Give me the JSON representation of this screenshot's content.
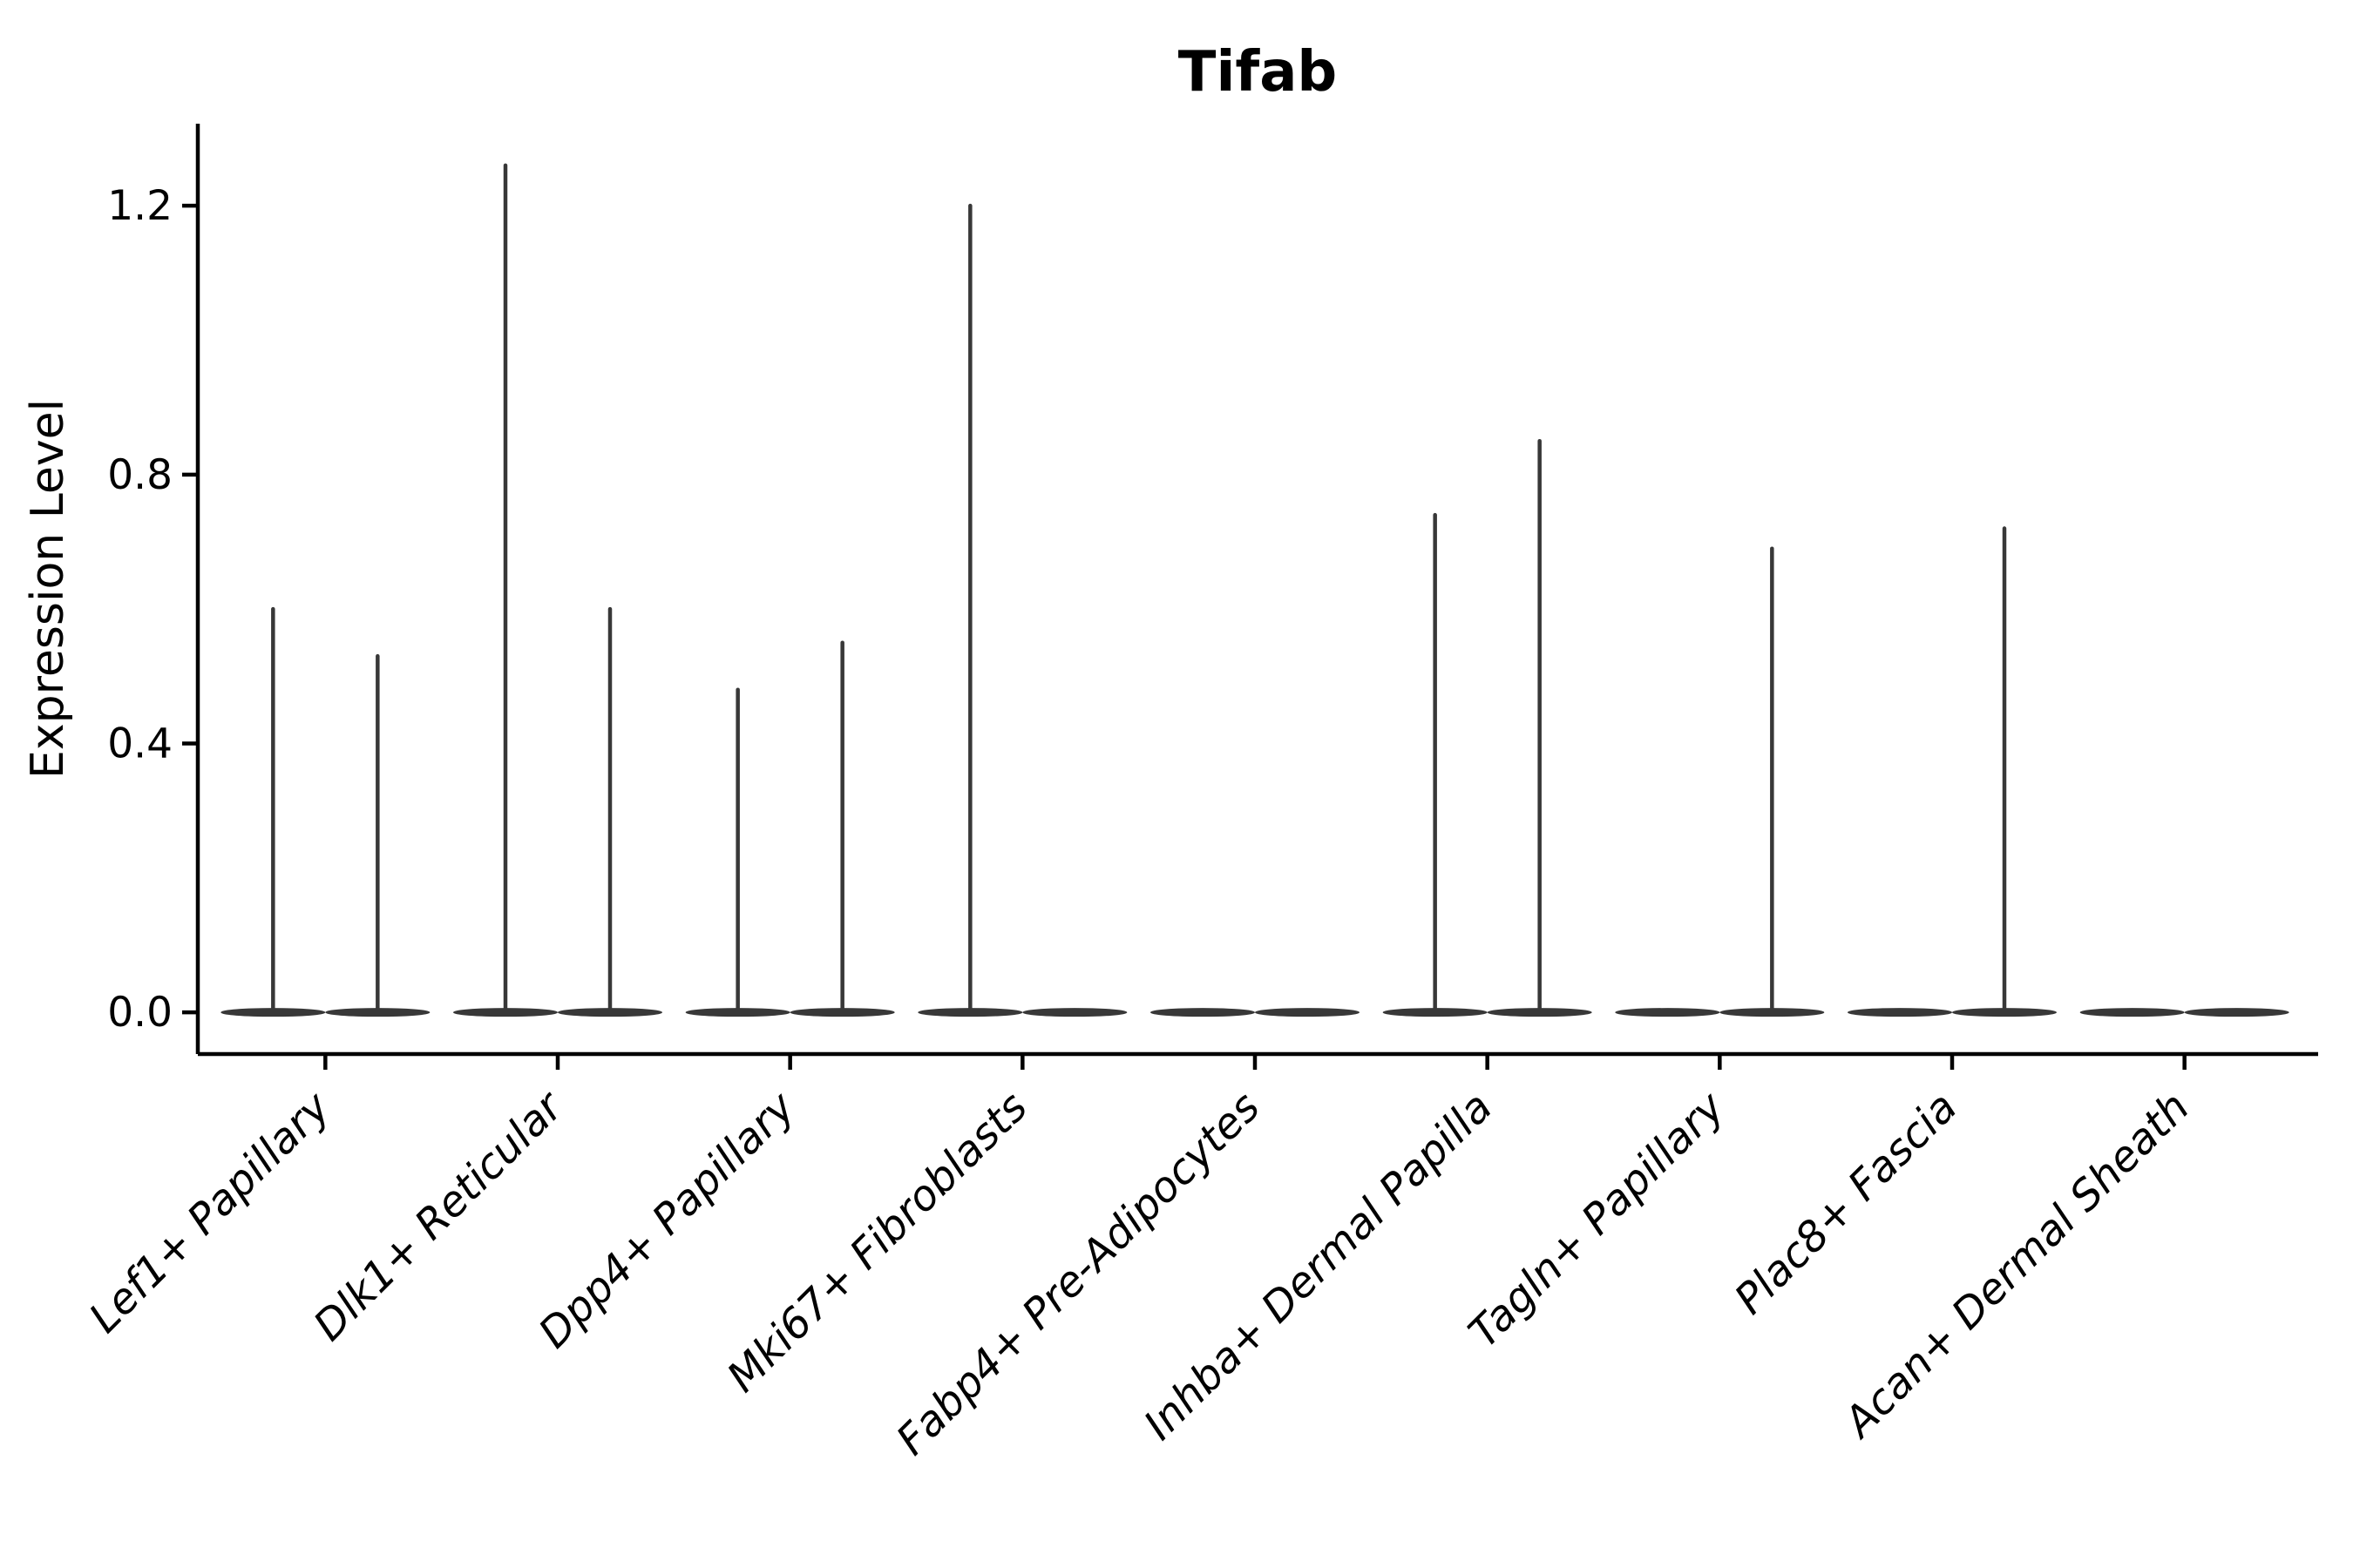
{
  "title": "Tifab",
  "ylabel": "Expression Level",
  "colors": {
    "violin": "#383838",
    "axis": "#000000",
    "background": "#ffffff",
    "text": "#000000"
  },
  "chart_data": {
    "type": "violin",
    "title": "Tifab",
    "xlabel": "",
    "ylabel": "Expression Level",
    "categories": [
      "Lef1+ Papillary",
      "Dlk1+ Reticular",
      "Dpp4+ Papillary",
      "Mki67+ Fibroblasts",
      "Fabp4+ Pre-Adipocytes",
      "Inhba+ Dermal Papilla",
      "Tagln+ Papillary",
      "Plac8+ Fascia",
      "Acan+ Dermal Sheath"
    ],
    "violins_per_category": 2,
    "description": "Each category shows two side-by-side violins whose density is concentrated at 0 (flat body) with a thin tail (spike) up to the max expression value.",
    "series": [
      {
        "name": "left-violin-max",
        "values": [
          0.6,
          1.26,
          0.48,
          1.2,
          0,
          0.74,
          0,
          0,
          0
        ]
      },
      {
        "name": "right-violin-max",
        "values": [
          0.53,
          0.6,
          0.55,
          0,
          0,
          0.85,
          0.69,
          0.72,
          0
        ]
      }
    ],
    "yticks": [
      "0.0",
      "0.4",
      "0.8",
      "1.2"
    ],
    "ytick_values": [
      0.0,
      0.4,
      0.8,
      1.2
    ],
    "ylim": [
      -0.062,
      1.322
    ],
    "grid": false,
    "legend": "none",
    "x_label_rotation_deg": 45,
    "x_label_style": "italic"
  }
}
